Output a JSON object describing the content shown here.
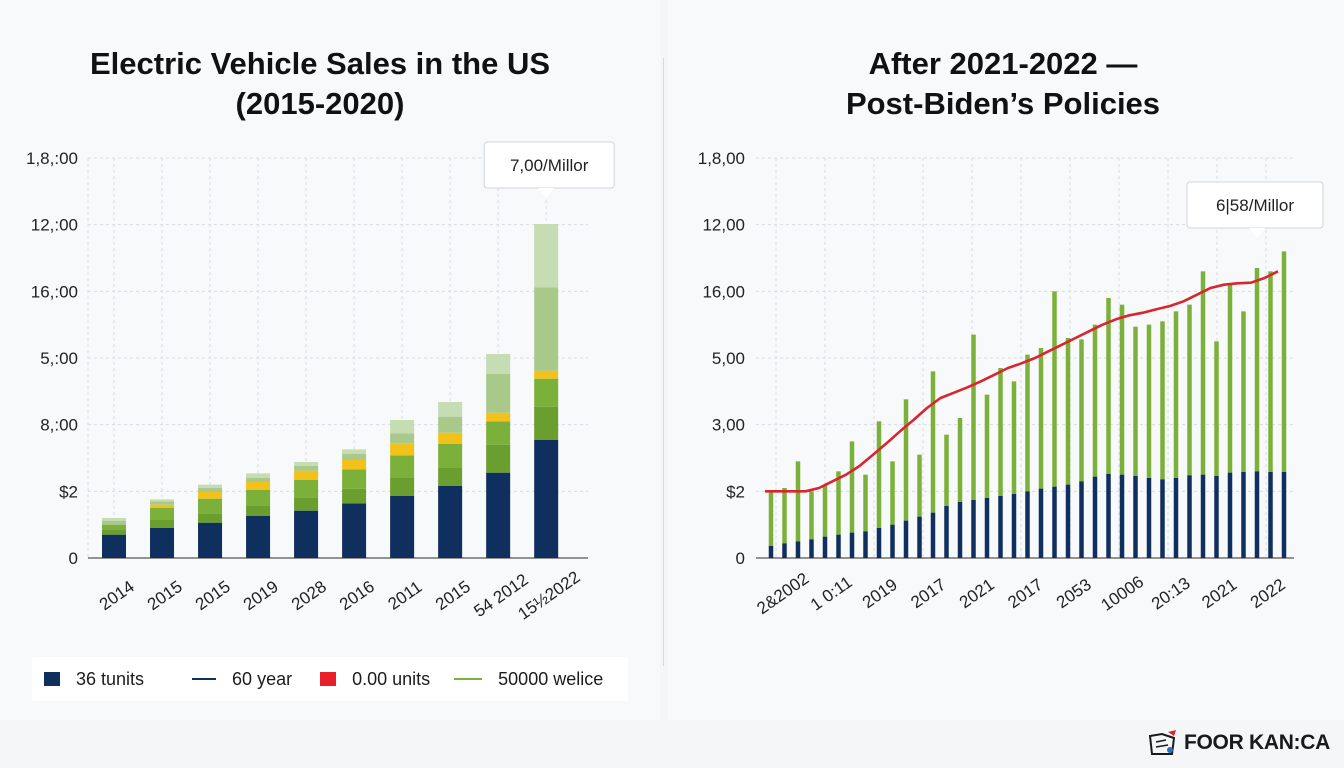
{
  "left_title": [
    "Electric Vehicle Sales in the US",
    "(2015-2020)"
  ],
  "right_title": [
    "After 2021-2022 —",
    "Post-Biden’s Policies"
  ],
  "legend": [
    {
      "label": "36 tunits",
      "color": "#0f2f5e",
      "kind": "square"
    },
    {
      "label": "60 year",
      "color": "#0f2f5e",
      "kind": "line"
    },
    {
      "label": "0.00 units",
      "color": "#e8202a",
      "kind": "square"
    },
    {
      "label": "50000 welice",
      "color": "#7bb13b",
      "kind": "line"
    }
  ],
  "brand": "FOOR KAN:CA",
  "colors": {
    "navy": "#0f2f5e",
    "dark_green": "#6a9e2f",
    "green": "#7bb13b",
    "light_green": "#a8c98a",
    "pale_green": "#c6dcb3",
    "yellow": "#f2c21b",
    "red": "#d9252e",
    "grid": "#d8dde2"
  },
  "chart_data": [
    {
      "type": "bar",
      "stacked": true,
      "title": "Electric Vehicle Sales in the US (2015-2020)",
      "y_tick_labels": [
        "0",
        "$2",
        "8,:00",
        "5,:00",
        "16,:00",
        "12,:00",
        "1,8,:00"
      ],
      "ylim": [
        0,
        6
      ],
      "grid": true,
      "categories": [
        "2014",
        "2015",
        "2015",
        "2019",
        "2028",
        "2016",
        "2011",
        "2015",
        "54 2012",
        "15½2022"
      ],
      "series": [
        {
          "key": "navy",
          "values": [
            0.35,
            0.45,
            0.53,
            0.63,
            0.71,
            0.82,
            0.93,
            1.08,
            1.28,
            1.77
          ]
        },
        {
          "key": "dark_green",
          "values": [
            0.07,
            0.12,
            0.14,
            0.15,
            0.2,
            0.22,
            0.28,
            0.28,
            0.42,
            0.5
          ]
        },
        {
          "key": "green",
          "values": [
            0.08,
            0.18,
            0.22,
            0.24,
            0.26,
            0.29,
            0.33,
            0.35,
            0.35,
            0.42
          ]
        },
        {
          "key": "yellow",
          "values": [
            0.0,
            0.05,
            0.1,
            0.12,
            0.14,
            0.14,
            0.18,
            0.17,
            0.13,
            0.12
          ]
        },
        {
          "key": "light_green",
          "values": [
            0.06,
            0.05,
            0.06,
            0.06,
            0.07,
            0.09,
            0.15,
            0.24,
            0.58,
            1.25
          ]
        },
        {
          "key": "pale_green",
          "values": [
            0.04,
            0.03,
            0.05,
            0.07,
            0.06,
            0.07,
            0.2,
            0.22,
            0.3,
            0.95
          ]
        }
      ],
      "callout": {
        "label": "7,00/Millor",
        "category_index": 9
      }
    },
    {
      "type": "bar+line",
      "title": "After 2021-2022 — Post-Biden’s Policies",
      "y_tick_labels": [
        "0",
        "$2",
        "3,00",
        "5,00",
        "16,00",
        "12,00",
        "1,8,00"
      ],
      "ylim": [
        0,
        6
      ],
      "grid": true,
      "x_tick_labels": [
        "2&2002",
        "1 0:11",
        "2019",
        "2017",
        "2021",
        "2017",
        "2053",
        "10006",
        "20:13",
        "2021",
        "2022"
      ],
      "bars_total": [
        1.0,
        1.05,
        1.45,
        1.0,
        1.1,
        1.3,
        1.75,
        1.25,
        2.05,
        1.45,
        2.38,
        1.55,
        2.8,
        1.85,
        2.1,
        3.35,
        2.45,
        2.85,
        2.65,
        3.05,
        3.15,
        4.0,
        3.3,
        3.28,
        3.5,
        3.9,
        3.8,
        3.47,
        3.5,
        3.55,
        3.7,
        3.8,
        4.3,
        3.25,
        4.1,
        3.7,
        4.35,
        4.3,
        4.6
      ],
      "bars_navy": [
        0.18,
        0.22,
        0.25,
        0.28,
        0.32,
        0.35,
        0.38,
        0.4,
        0.45,
        0.5,
        0.56,
        0.62,
        0.68,
        0.78,
        0.84,
        0.87,
        0.9,
        0.93,
        0.96,
        1.0,
        1.04,
        1.07,
        1.1,
        1.15,
        1.22,
        1.26,
        1.25,
        1.23,
        1.2,
        1.18,
        1.2,
        1.24,
        1.25,
        1.23,
        1.28,
        1.29,
        1.3,
        1.29,
        1.29
      ],
      "line": [
        1.0,
        1.0,
        1.0,
        1.0,
        1.05,
        1.15,
        1.25,
        1.38,
        1.55,
        1.72,
        1.9,
        2.07,
        2.25,
        2.4,
        2.48,
        2.56,
        2.65,
        2.75,
        2.85,
        2.92,
        3.0,
        3.1,
        3.2,
        3.3,
        3.4,
        3.5,
        3.58,
        3.64,
        3.68,
        3.73,
        3.78,
        3.85,
        3.95,
        4.05,
        4.1,
        4.12,
        4.13,
        4.2,
        4.3
      ],
      "callout": {
        "label": "6|58/Millor",
        "bar_index": 36
      }
    }
  ]
}
